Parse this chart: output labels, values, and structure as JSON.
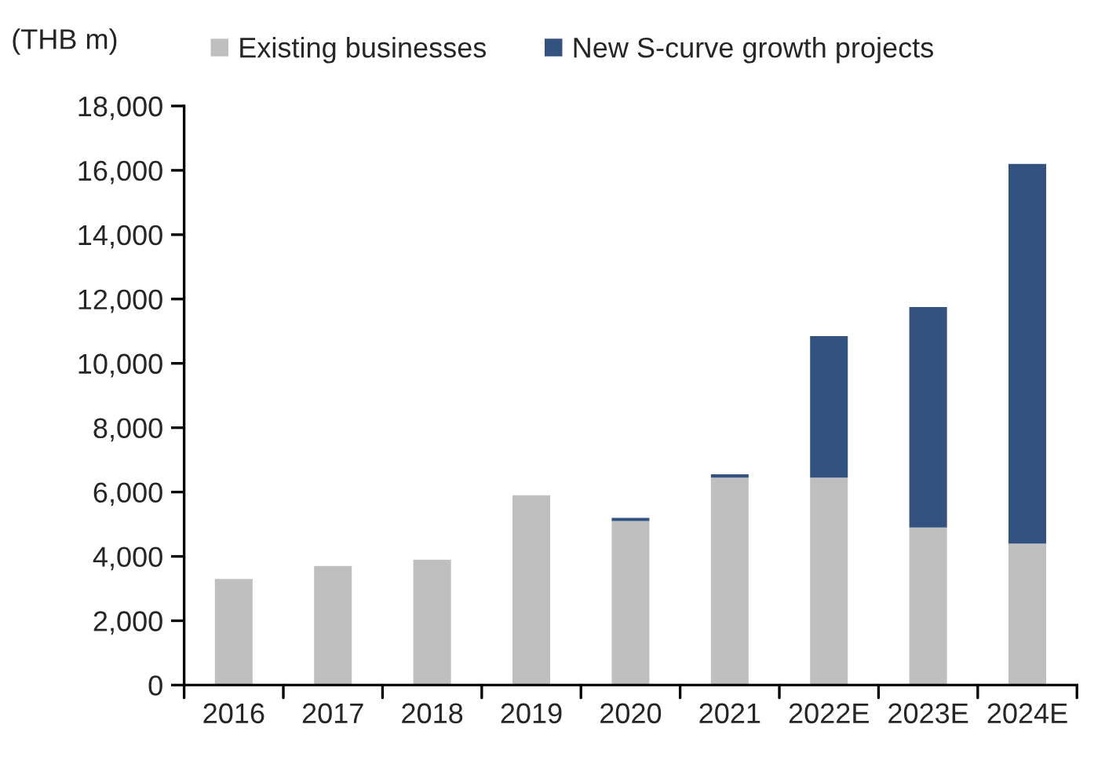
{
  "chart_data": {
    "type": "bar",
    "stacked": true,
    "ylabel": "(THB m)",
    "categories": [
      "2016",
      "2017",
      "2018",
      "2019",
      "2020",
      "2021",
      "2022E",
      "2023E",
      "2024E"
    ],
    "series": [
      {
        "name": "Existing businesses",
        "color": "#bfbfbf",
        "values": [
          3300,
          3700,
          3900,
          5900,
          5100,
          6450,
          6450,
          4900,
          4400
        ]
      },
      {
        "name": "New S-curve growth projects",
        "color": "#33527f",
        "values": [
          null,
          null,
          null,
          null,
          100,
          100,
          4400,
          6850,
          11800
        ]
      }
    ],
    "ylim": [
      0,
      18000
    ],
    "yticks": [
      {
        "value": 0,
        "label": "0"
      },
      {
        "value": 2000,
        "label": "2,000"
      },
      {
        "value": 4000,
        "label": "4,000"
      },
      {
        "value": 6000,
        "label": "6,000"
      },
      {
        "value": 8000,
        "label": "8,000"
      },
      {
        "value": 10000,
        "label": "10,000"
      },
      {
        "value": 12000,
        "label": "12,000"
      },
      {
        "value": 14000,
        "label": "14,000"
      },
      {
        "value": 16000,
        "label": "16,000"
      },
      {
        "value": 18000,
        "label": "18,000"
      }
    ],
    "grid": false,
    "legend": "top"
  }
}
